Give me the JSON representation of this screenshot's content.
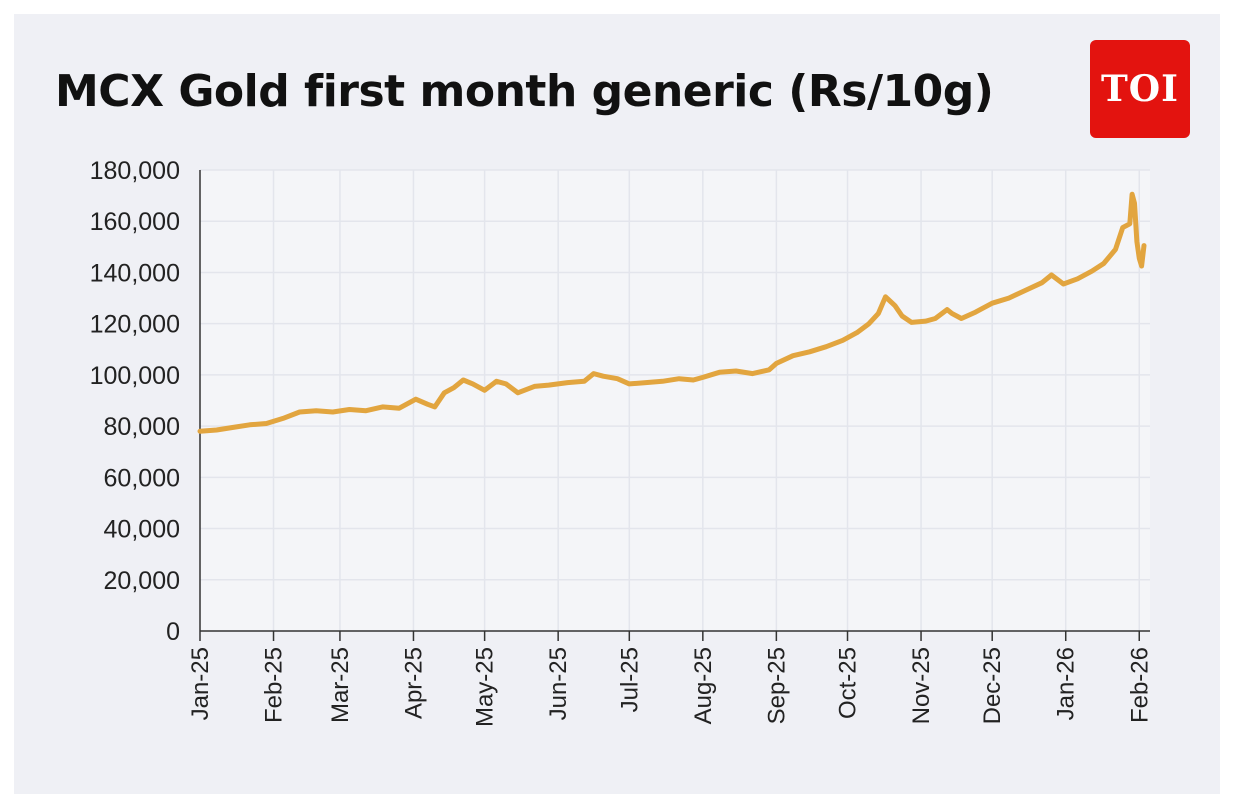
{
  "logo": {
    "text": "TOI",
    "color": "#e3130f"
  },
  "chart_data": {
    "type": "line",
    "title": "MCX Gold first month generic (Rs/10g)",
    "xlabel": "",
    "ylabel": "",
    "ylim": [
      0,
      180000
    ],
    "yticks": [
      0,
      20000,
      40000,
      60000,
      80000,
      100000,
      120000,
      140000,
      160000,
      180000
    ],
    "ytick_labels": [
      "0",
      "20,000",
      "40,000",
      "60,000",
      "80,000",
      "100,000",
      "120,000",
      "140,000",
      "160,000",
      "180,000"
    ],
    "xlim": [
      "2025-01-01",
      "2026-02-03"
    ],
    "xticks": [
      "2025-01-01",
      "2025-02-01",
      "2025-03-01",
      "2025-04-01",
      "2025-05-01",
      "2025-06-01",
      "2025-07-01",
      "2025-08-01",
      "2025-09-01",
      "2025-10-01",
      "2025-11-01",
      "2025-12-01",
      "2026-01-01",
      "2026-02-01"
    ],
    "xtick_labels": [
      "Jan-25",
      "Feb-25",
      "Mar-25",
      "Apr-25",
      "May-25",
      "Jun-25",
      "Jul-25",
      "Aug-25",
      "Sep-25",
      "Oct-25",
      "Nov-25",
      "Dec-25",
      "Jan-26",
      "Feb-26"
    ],
    "grid": true,
    "line_color": "#e2a53f",
    "series": [
      {
        "name": "",
        "points": [
          [
            "2025-01-01",
            78000
          ],
          [
            "2025-01-08",
            78500
          ],
          [
            "2025-01-15",
            79500
          ],
          [
            "2025-01-22",
            80500
          ],
          [
            "2025-01-29",
            81000
          ],
          [
            "2025-02-05",
            83000
          ],
          [
            "2025-02-12",
            85500
          ],
          [
            "2025-02-19",
            86000
          ],
          [
            "2025-02-26",
            85500
          ],
          [
            "2025-03-05",
            86500
          ],
          [
            "2025-03-12",
            86000
          ],
          [
            "2025-03-19",
            87500
          ],
          [
            "2025-03-26",
            87000
          ],
          [
            "2025-04-02",
            90500
          ],
          [
            "2025-04-07",
            88500
          ],
          [
            "2025-04-10",
            87500
          ],
          [
            "2025-04-14",
            93000
          ],
          [
            "2025-04-18",
            95000
          ],
          [
            "2025-04-22",
            98000
          ],
          [
            "2025-04-26",
            96500
          ],
          [
            "2025-05-01",
            94000
          ],
          [
            "2025-05-06",
            97500
          ],
          [
            "2025-05-10",
            96500
          ],
          [
            "2025-05-15",
            93000
          ],
          [
            "2025-05-22",
            95500
          ],
          [
            "2025-05-28",
            96000
          ],
          [
            "2025-06-05",
            97000
          ],
          [
            "2025-06-12",
            97500
          ],
          [
            "2025-06-16",
            100500
          ],
          [
            "2025-06-20",
            99500
          ],
          [
            "2025-06-26",
            98500
          ],
          [
            "2025-07-01",
            96500
          ],
          [
            "2025-07-08",
            97000
          ],
          [
            "2025-07-15",
            97500
          ],
          [
            "2025-07-22",
            98500
          ],
          [
            "2025-07-28",
            98000
          ],
          [
            "2025-08-01",
            99000
          ],
          [
            "2025-08-08",
            101000
          ],
          [
            "2025-08-15",
            101500
          ],
          [
            "2025-08-22",
            100500
          ],
          [
            "2025-08-29",
            102000
          ],
          [
            "2025-09-01",
            104500
          ],
          [
            "2025-09-08",
            107500
          ],
          [
            "2025-09-15",
            109000
          ],
          [
            "2025-09-22",
            111000
          ],
          [
            "2025-09-29",
            113500
          ],
          [
            "2025-10-05",
            116500
          ],
          [
            "2025-10-10",
            120000
          ],
          [
            "2025-10-14",
            124000
          ],
          [
            "2025-10-17",
            130500
          ],
          [
            "2025-10-21",
            127000
          ],
          [
            "2025-10-24",
            123000
          ],
          [
            "2025-10-28",
            120500
          ],
          [
            "2025-11-03",
            121000
          ],
          [
            "2025-11-07",
            122000
          ],
          [
            "2025-11-12",
            125500
          ],
          [
            "2025-11-14",
            124000
          ],
          [
            "2025-11-18",
            122000
          ],
          [
            "2025-11-24",
            124500
          ],
          [
            "2025-12-01",
            128000
          ],
          [
            "2025-12-08",
            130000
          ],
          [
            "2025-12-15",
            133000
          ],
          [
            "2025-12-22",
            136000
          ],
          [
            "2025-12-26",
            139000
          ],
          [
            "2025-12-31",
            135500
          ],
          [
            "2026-01-06",
            137500
          ],
          [
            "2026-01-12",
            140500
          ],
          [
            "2026-01-17",
            143500
          ],
          [
            "2026-01-22",
            149000
          ],
          [
            "2026-01-25",
            157500
          ],
          [
            "2026-01-28",
            159000
          ],
          [
            "2026-01-29",
            170500
          ],
          [
            "2026-01-30",
            167000
          ],
          [
            "2026-01-31",
            152000
          ],
          [
            "2026-02-01",
            145500
          ],
          [
            "2026-02-02",
            142500
          ],
          [
            "2026-02-03",
            150500
          ]
        ]
      }
    ]
  }
}
